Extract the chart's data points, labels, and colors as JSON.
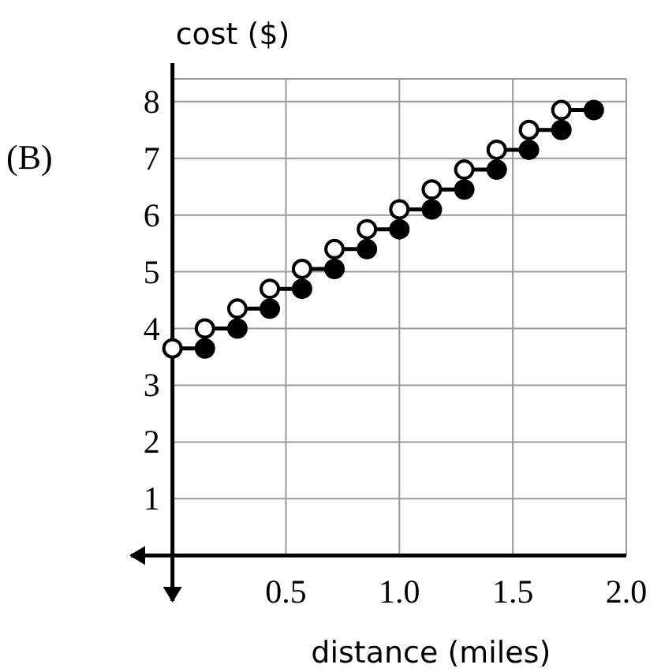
{
  "chart_data": {
    "type": "line",
    "xlabel": "distance (miles)",
    "ylabel": "cost ($)",
    "annotations": [
      "(B)"
    ],
    "series": [
      {
        "color": "#000000",
        "x": [
          0,
          0.143
        ],
        "values": [
          3.65,
          3.65
        ]
      },
      {
        "color": "#000000",
        "x": [
          0.143,
          0.286
        ],
        "values": [
          4.0,
          4.0
        ]
      },
      {
        "color": "#000000",
        "x": [
          0.286,
          0.429
        ],
        "values": [
          4.35,
          4.35
        ]
      },
      {
        "color": "#000000",
        "x": [
          0.429,
          0.571
        ],
        "values": [
          4.7,
          4.7
        ]
      },
      {
        "color": "#000000",
        "x": [
          0.571,
          0.714
        ],
        "values": [
          5.05,
          5.05
        ]
      },
      {
        "color": "#000000",
        "x": [
          0.714,
          0.857
        ],
        "values": [
          5.4,
          5.4
        ]
      },
      {
        "color": "#000000",
        "x": [
          0.857,
          1.0
        ],
        "values": [
          5.75,
          5.75
        ]
      },
      {
        "color": "#000000",
        "x": [
          1.0,
          1.143
        ],
        "values": [
          6.1,
          6.1
        ]
      },
      {
        "color": "#000000",
        "x": [
          1.143,
          1.286
        ],
        "values": [
          6.45,
          6.45
        ]
      },
      {
        "color": "#000000",
        "x": [
          1.286,
          1.429
        ],
        "values": [
          6.8,
          6.8
        ]
      },
      {
        "color": "#000000",
        "x": [
          1.429,
          1.571
        ],
        "values": [
          7.15,
          7.15
        ]
      },
      {
        "color": "#000000",
        "x": [
          1.571,
          1.714
        ],
        "values": [
          7.5,
          7.5
        ]
      },
      {
        "color": "#000000",
        "x": [
          1.714,
          1.857
        ],
        "values": [
          7.85,
          7.85
        ]
      },
      {
        "type": "scatter",
        "color": "#ffffff",
        "marker": "circle",
        "x": [
          0,
          0.143,
          0.286,
          0.429,
          0.571,
          0.714,
          0.857,
          1.0,
          1.143,
          1.286,
          1.429,
          1.571,
          1.714
        ],
        "values": [
          3.65,
          4.0,
          4.35,
          4.7,
          5.05,
          5.4,
          5.75,
          6.1,
          6.45,
          6.8,
          7.15,
          7.5,
          7.85
        ]
      },
      {
        "type": "scatter",
        "color": "#000000",
        "marker": "circle",
        "x": [
          0.143,
          0.286,
          0.429,
          0.571,
          0.714,
          0.857,
          1.0,
          1.143,
          1.286,
          1.429,
          1.571,
          1.714,
          1.857
        ],
        "values": [
          3.65,
          4.0,
          4.35,
          4.7,
          5.05,
          5.4,
          5.75,
          6.1,
          6.45,
          6.8,
          7.15,
          7.5,
          7.85
        ]
      }
    ],
    "xlim": [
      -0.19,
      2.0
    ],
    "ylim": [
      -0.83,
      8.4
    ],
    "xticks": [
      {
        "value": 0,
        "label": null
      },
      0.5,
      {
        "value": 1,
        "label": "1.0"
      },
      1.5,
      {
        "value": 2,
        "label": "2.0"
      }
    ],
    "yticks": [
      {
        "value": 0,
        "label": null
      },
      1,
      2,
      3,
      4,
      5,
      6,
      7,
      8
    ],
    "grid": true
  }
}
